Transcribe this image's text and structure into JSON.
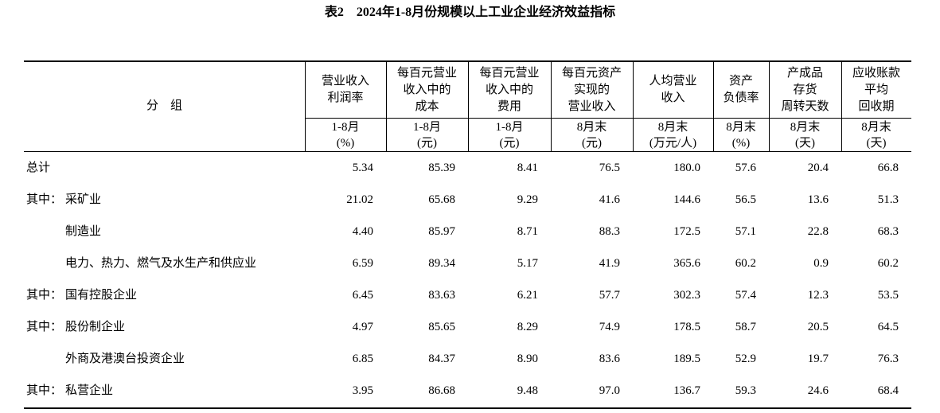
{
  "title": "表2　2024年1-8月份规模以上工业企业经济效益指标",
  "table": {
    "group_header": "分　组",
    "columns": [
      {
        "head": [
          "营业收入",
          "利润率"
        ],
        "unit": [
          "1-8月",
          "(%)"
        ]
      },
      {
        "head": [
          "每百元营业",
          "收入中的",
          "成本"
        ],
        "unit": [
          "1-8月",
          "(元)"
        ]
      },
      {
        "head": [
          "每百元营业",
          "收入中的",
          "费用"
        ],
        "unit": [
          "1-8月",
          "(元)"
        ]
      },
      {
        "head": [
          "每百元资产",
          "实现的",
          "营业收入"
        ],
        "unit": [
          "8月末",
          "(元)"
        ]
      },
      {
        "head": [
          "人均营业",
          "收入"
        ],
        "unit": [
          "8月末",
          "(万元/人)"
        ]
      },
      {
        "head": [
          "资产",
          "负债率"
        ],
        "unit": [
          "8月末",
          "(%)"
        ]
      },
      {
        "head": [
          "产成品",
          "存货",
          "周转天数"
        ],
        "unit": [
          "8月末",
          "(天)"
        ]
      },
      {
        "head": [
          "应收账款",
          "平均",
          "回收期"
        ],
        "unit": [
          "8月末",
          "(天)"
        ]
      }
    ],
    "rows": [
      {
        "label": "总计",
        "values": [
          "5.34",
          "85.39",
          "8.41",
          "76.5",
          "180.0",
          "57.6",
          "20.4",
          "66.8"
        ]
      },
      {
        "prefix": "其中：",
        "label": "采矿业",
        "values": [
          "21.02",
          "65.68",
          "9.29",
          "41.6",
          "144.6",
          "56.5",
          "13.6",
          "51.3"
        ]
      },
      {
        "label": "制造业",
        "values": [
          "4.40",
          "85.97",
          "8.71",
          "88.3",
          "172.5",
          "57.1",
          "22.8",
          "68.3"
        ]
      },
      {
        "label": "电力、热力、燃气及水生产和供应业",
        "values": [
          "6.59",
          "89.34",
          "5.17",
          "41.9",
          "365.6",
          "60.2",
          "0.9",
          "60.2"
        ]
      },
      {
        "prefix": "其中：",
        "label": "国有控股企业",
        "values": [
          "6.45",
          "83.63",
          "6.21",
          "57.7",
          "302.3",
          "57.4",
          "12.3",
          "53.5"
        ]
      },
      {
        "prefix": "其中：",
        "label": "股份制企业",
        "values": [
          "4.97",
          "85.65",
          "8.29",
          "74.9",
          "178.5",
          "58.7",
          "20.5",
          "64.5"
        ]
      },
      {
        "label": "外商及港澳台投资企业",
        "values": [
          "6.85",
          "84.37",
          "8.90",
          "83.6",
          "189.5",
          "52.9",
          "19.7",
          "76.3"
        ]
      },
      {
        "prefix": "其中：",
        "label": "私营企业",
        "values": [
          "3.95",
          "86.68",
          "9.48",
          "97.0",
          "136.7",
          "59.3",
          "24.6",
          "68.4"
        ]
      }
    ]
  }
}
